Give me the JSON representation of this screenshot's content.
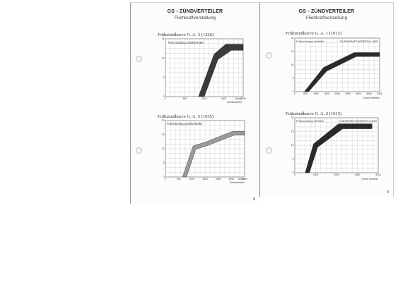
{
  "document": {
    "left_page": {
      "title": "GS - ZÜNDVERTEILER",
      "subtitle": "Fliehkraftverstellung",
      "page_number": "8",
      "charts": [
        {
          "heading": "Frühzündkurve G. A. 3 (1220)",
          "label": "Frühzündung Zündverteiler",
          "xlabel": [
            "U/min",
            "Zündverteiler"
          ]
        },
        {
          "heading": "Frühzündkurve G. A. 5 (1035)",
          "label": "Frühzündung Zündverteiler",
          "xlabel": [
            "U/min",
            "Zündverteiler"
          ]
        }
      ]
    },
    "right_page": {
      "title": "GS - ZÜNDVERTEILER",
      "subtitle": "Fliehkraftverstellung",
      "page_number": "9",
      "charts": [
        {
          "heading": "Frühzündkurve G. A. 1 (1015)",
          "label": "Frühzündung Verteiler",
          "label_right": "FLIEHKRAFTVERSTELLUNG",
          "xlabel": [
            "U/min Verteiler"
          ]
        },
        {
          "heading": "Frühzündkurve G. A. 2 (1015)",
          "label": "Frühzündung Verteiler",
          "label_right": "FLIEHKRAFTVERSTELLUNG",
          "xlabel": [
            "U/min Verteiler"
          ]
        }
      ]
    }
  },
  "chart_data": [
    {
      "type": "area",
      "title": "Frühzündkurve G. A. 3 (1220)",
      "xlim": [
        0,
        2000
      ],
      "ylim": [
        0,
        15
      ],
      "xticks": [
        "0",
        "500",
        "1000",
        "1500",
        "2000"
      ],
      "yticks": [
        "0",
        "5",
        "10",
        "15"
      ],
      "band_color": "#3a3a3a",
      "upper": [
        [
          850,
          0
        ],
        [
          1250,
          11
        ],
        [
          1550,
          13.6
        ],
        [
          2000,
          13.6
        ]
      ],
      "lower": [
        [
          1000,
          0
        ],
        [
          1350,
          9.6
        ],
        [
          1700,
          12
        ],
        [
          2000,
          12
        ]
      ]
    },
    {
      "type": "area",
      "title": "Frühzündkurve G. A. 5 (1035)",
      "xlim": [
        0,
        3000
      ],
      "ylim": [
        0,
        20
      ],
      "xticks": [
        "0",
        "500",
        "1000",
        "1500",
        "2000",
        "2500",
        "3000"
      ],
      "yticks": [
        "0",
        "5",
        "10",
        "15",
        "20"
      ],
      "band_color": "#9a9a9a",
      "upper": [
        [
          650,
          0
        ],
        [
          1050,
          11
        ],
        [
          1500,
          12.3
        ],
        [
          2550,
          16.2
        ],
        [
          3000,
          16.2
        ]
      ],
      "lower": [
        [
          800,
          0
        ],
        [
          1150,
          9.8
        ],
        [
          1650,
          11.3
        ],
        [
          2600,
          14.8
        ],
        [
          3000,
          14.8
        ]
      ]
    },
    {
      "type": "area",
      "title": "Frühzündkurve G. A. 1 (1015)",
      "xlim": [
        0,
        4000
      ],
      "ylim": [
        0,
        20
      ],
      "xticks": [
        "0",
        "500",
        "1000",
        "1500",
        "2000",
        "2500",
        "3000",
        "3500",
        "4000"
      ],
      "yticks": [
        "0",
        "5",
        "10",
        "15",
        "20"
      ],
      "band_color": "#2a2a2a",
      "upper": [
        [
          450,
          0
        ],
        [
          1350,
          9
        ],
        [
          2800,
          14.6
        ],
        [
          4000,
          14.6
        ]
      ],
      "lower": [
        [
          650,
          0
        ],
        [
          1500,
          7.6
        ],
        [
          2900,
          13.1
        ],
        [
          4000,
          13.1
        ]
      ]
    },
    {
      "type": "area",
      "title": "Frühzündkurve G. A. 2 (1015)",
      "xlim": [
        0,
        4000
      ],
      "ylim": [
        0,
        20
      ],
      "xticks": [
        "0",
        "1000",
        "2000",
        "3000",
        "4000"
      ],
      "yticks": [
        "0",
        "5",
        "10",
        "15",
        "20"
      ],
      "band_color": "#2a2a2a",
      "upper": [
        [
          500,
          0
        ],
        [
          900,
          10.5
        ],
        [
          2100,
          17.8
        ],
        [
          3700,
          17.8
        ]
      ],
      "lower": [
        [
          700,
          0
        ],
        [
          1100,
          9.3
        ],
        [
          2300,
          16
        ],
        [
          3700,
          16
        ]
      ]
    }
  ]
}
